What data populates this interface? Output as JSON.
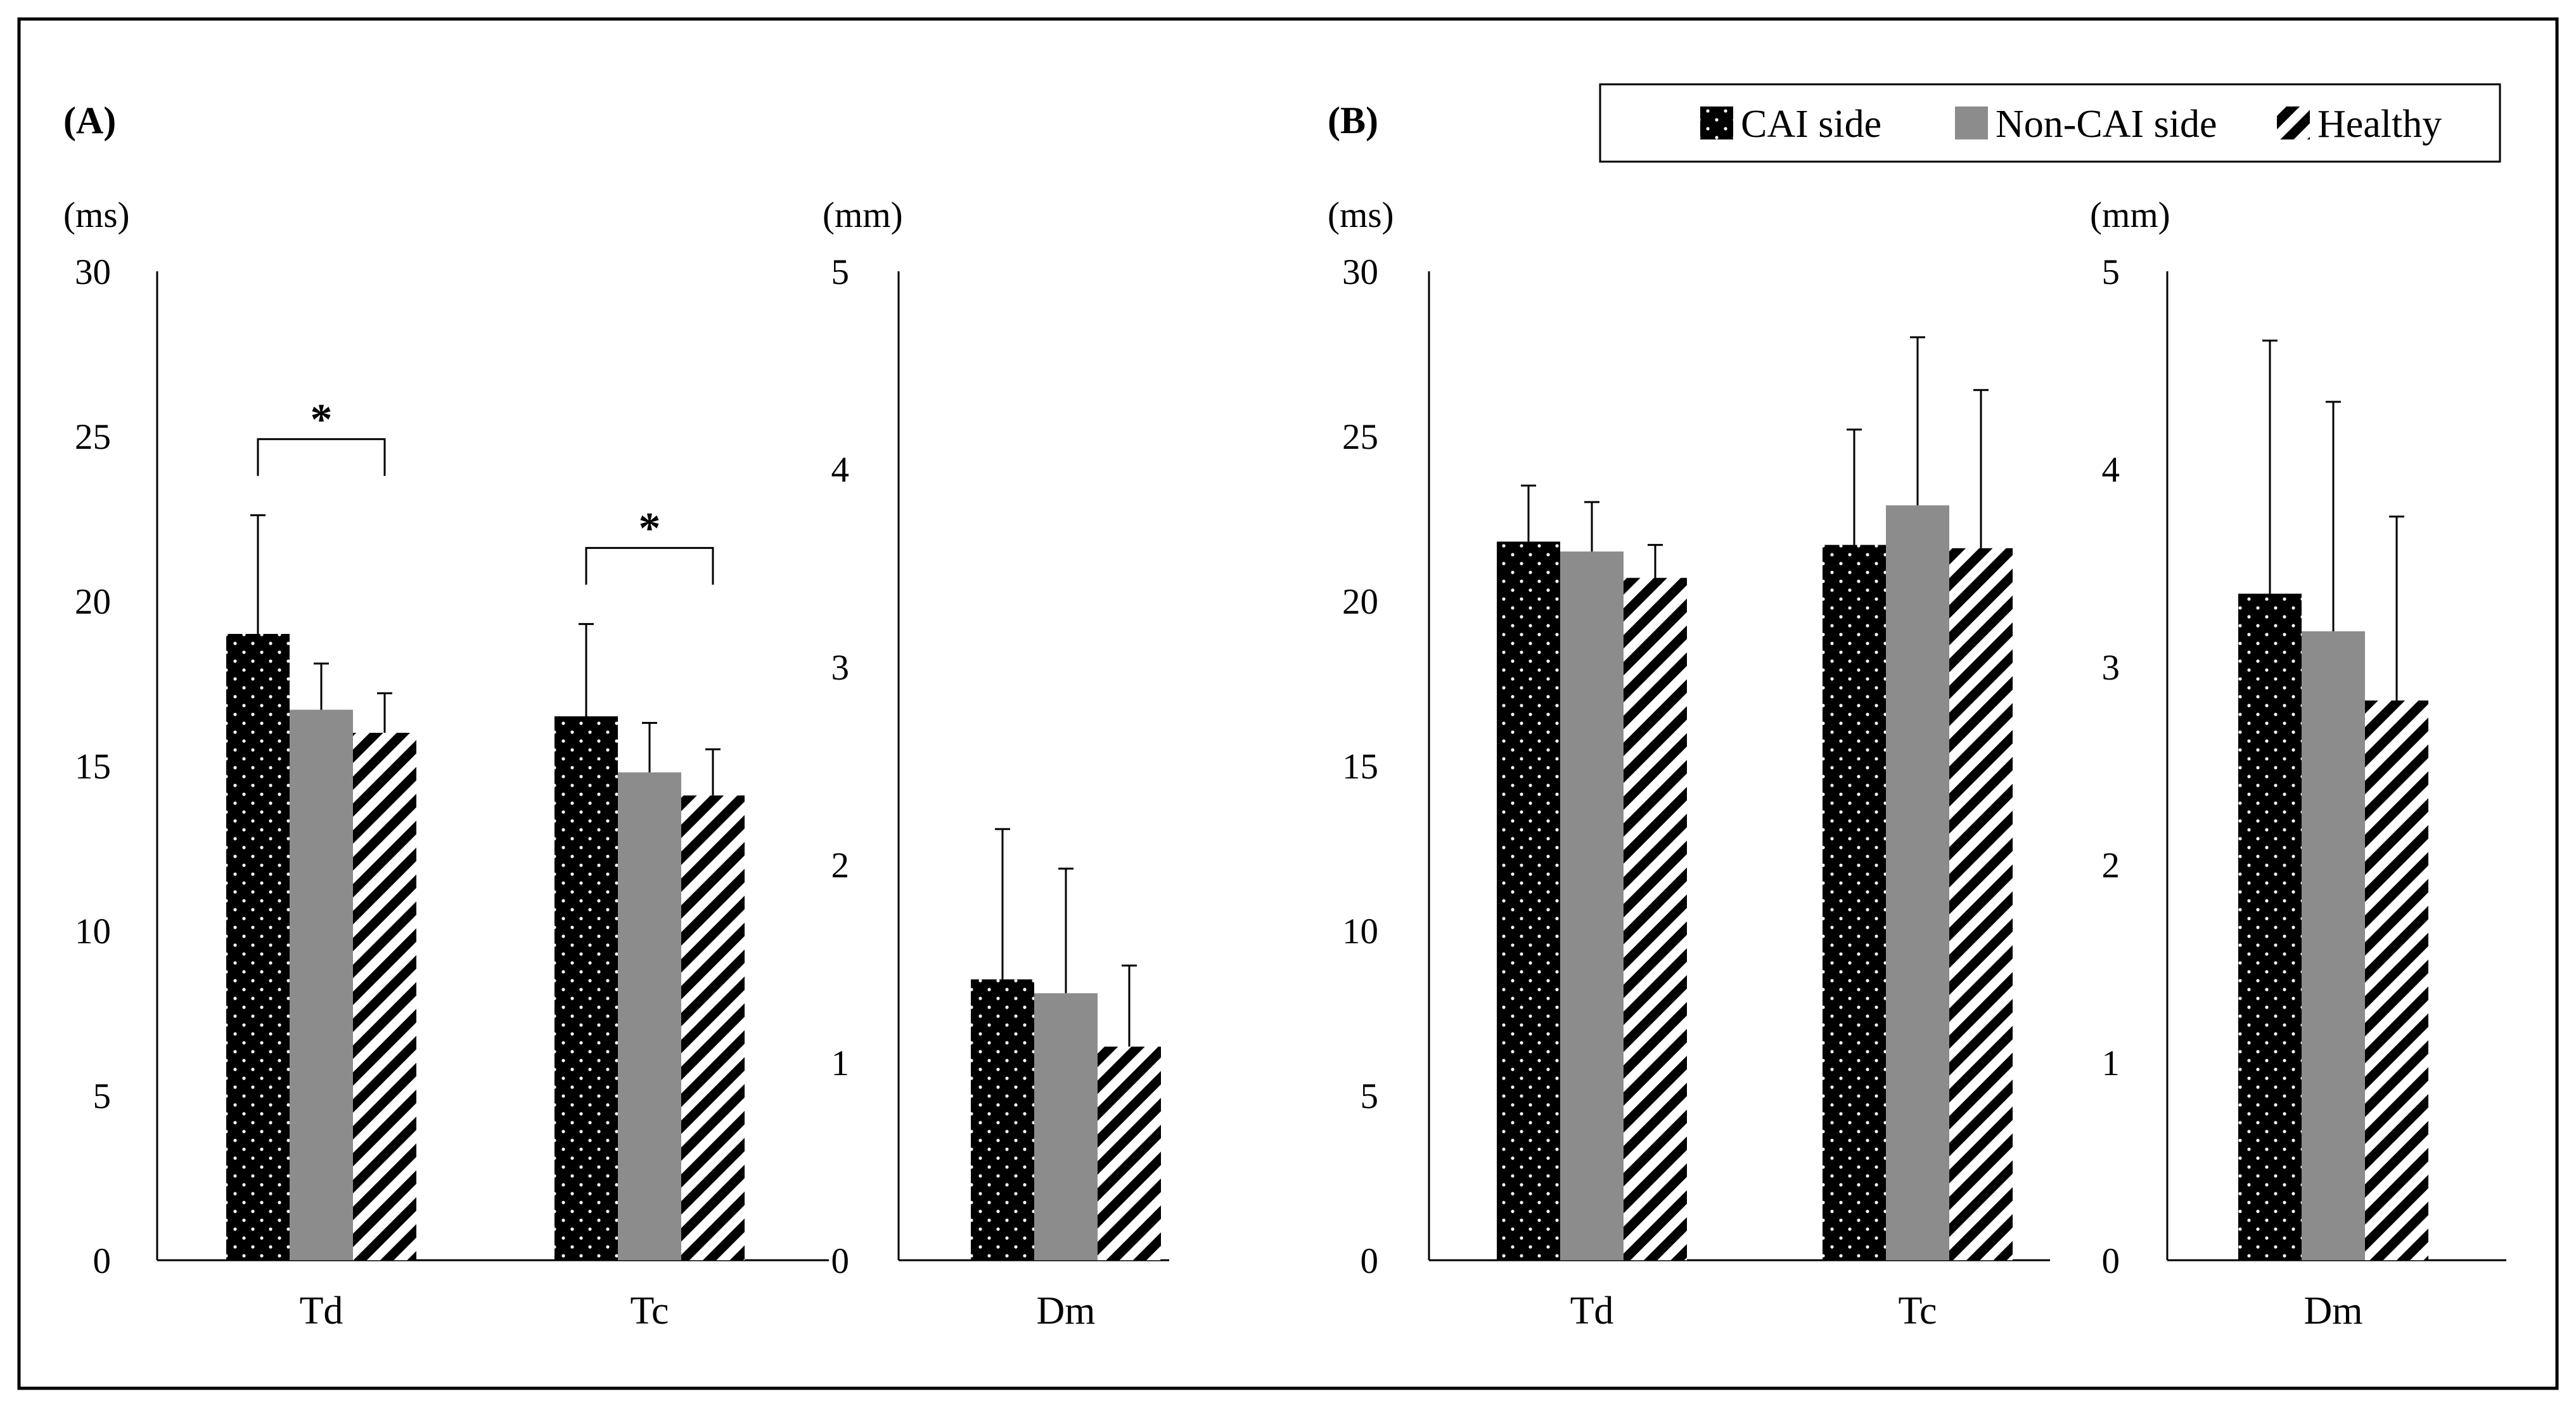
{
  "title": "",
  "legend": {
    "placement": "top-right",
    "items": [
      {
        "label": "CAI side",
        "pattern": "dots"
      },
      {
        "label": "Non-CAI side",
        "pattern": "solid-gray"
      },
      {
        "label": "Healthy",
        "pattern": "diagonal-stripes"
      }
    ]
  },
  "colors": {
    "cai": "#000000",
    "noncai": "#8c8c8c",
    "healthy": "#000000",
    "axis": "#000000"
  },
  "chart_data": [
    {
      "type": "bar",
      "panel": "(A)",
      "ylabel": "(ms)",
      "ylim": [
        0,
        30
      ],
      "yticks": [
        "0",
        "5",
        "10",
        "15",
        "20",
        "25",
        "30"
      ],
      "categories": [
        "Td",
        "Tc"
      ],
      "series": [
        {
          "name": "CAI side",
          "values": [
            19.0,
            16.5
          ],
          "errors": [
            3.6,
            2.8
          ]
        },
        {
          "name": "Non-CAI side",
          "values": [
            16.7,
            14.8
          ],
          "errors": [
            1.4,
            1.5
          ]
        },
        {
          "name": "Healthy",
          "values": [
            16.0,
            14.1
          ],
          "errors": [
            1.2,
            1.4
          ]
        }
      ],
      "annotations": [
        {
          "category": "Td",
          "text": "*",
          "from": "CAI side",
          "to": "Healthy"
        },
        {
          "category": "Tc",
          "text": "*",
          "from": "CAI side",
          "to": "Healthy"
        }
      ]
    },
    {
      "type": "bar",
      "panel": "",
      "ylabel": "(mm)",
      "ylim": [
        0,
        5
      ],
      "yticks": [
        "0",
        "1",
        "2",
        "3",
        "4",
        "5"
      ],
      "categories": [
        "Dm"
      ],
      "series": [
        {
          "name": "CAI side",
          "values": [
            1.42
          ],
          "errors": [
            0.76
          ]
        },
        {
          "name": "Non-CAI side",
          "values": [
            1.35
          ],
          "errors": [
            0.63
          ]
        },
        {
          "name": "Healthy",
          "values": [
            1.08
          ],
          "errors": [
            0.41
          ]
        }
      ],
      "annotations": []
    },
    {
      "type": "bar",
      "panel": "(B)",
      "ylabel": "(ms)",
      "ylim": [
        0,
        30
      ],
      "yticks": [
        "0",
        "5",
        "10",
        "15",
        "20",
        "25",
        "30"
      ],
      "categories": [
        "Td",
        "Tc"
      ],
      "series": [
        {
          "name": "CAI side",
          "values": [
            21.8,
            21.7
          ],
          "errors": [
            1.7,
            3.5
          ]
        },
        {
          "name": "Non-CAI side",
          "values": [
            21.5,
            22.9
          ],
          "errors": [
            1.5,
            5.1
          ]
        },
        {
          "name": "Healthy",
          "values": [
            20.7,
            21.6
          ],
          "errors": [
            1.0,
            4.8
          ]
        }
      ],
      "annotations": []
    },
    {
      "type": "bar",
      "panel": "",
      "ylabel": "(mm)",
      "ylim": [
        0,
        5
      ],
      "yticks": [
        "0",
        "1",
        "2",
        "3",
        "4",
        "5"
      ],
      "categories": [
        "Dm"
      ],
      "series": [
        {
          "name": "CAI side",
          "values": [
            3.37
          ],
          "errors": [
            1.28
          ]
        },
        {
          "name": "Non-CAI side",
          "values": [
            3.18
          ],
          "errors": [
            1.16
          ]
        },
        {
          "name": "Healthy",
          "values": [
            2.83
          ],
          "errors": [
            0.93
          ]
        }
      ],
      "annotations": []
    }
  ]
}
